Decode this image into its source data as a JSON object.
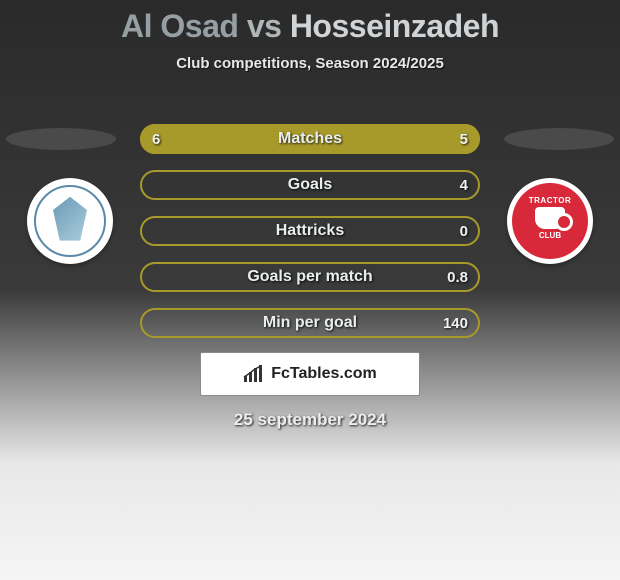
{
  "title": {
    "player1": "Al Osad",
    "vs": "vs",
    "player2": "Hosseinzadeh"
  },
  "subtitle": "Club competitions, Season 2024/2025",
  "colors": {
    "bar_fill": "#a89a2a",
    "bar_border": "#a89a2a",
    "bar_bg_empty": "rgba(0,0,0,0)"
  },
  "bars": [
    {
      "label": "Matches",
      "left": "6",
      "right": "5",
      "fill_pct": 100
    },
    {
      "label": "Goals",
      "left": "",
      "right": "4",
      "fill_pct": 0
    },
    {
      "label": "Hattricks",
      "left": "",
      "right": "0",
      "fill_pct": 0
    },
    {
      "label": "Goals per match",
      "left": "",
      "right": "0.8",
      "fill_pct": 0
    },
    {
      "label": "Min per goal",
      "left": "",
      "right": "140",
      "fill_pct": 0
    }
  ],
  "logo_text": "FcTables.com",
  "date": "25 september 2024",
  "crest_right": {
    "top": "TRACTOR",
    "bottom": "CLUB"
  }
}
